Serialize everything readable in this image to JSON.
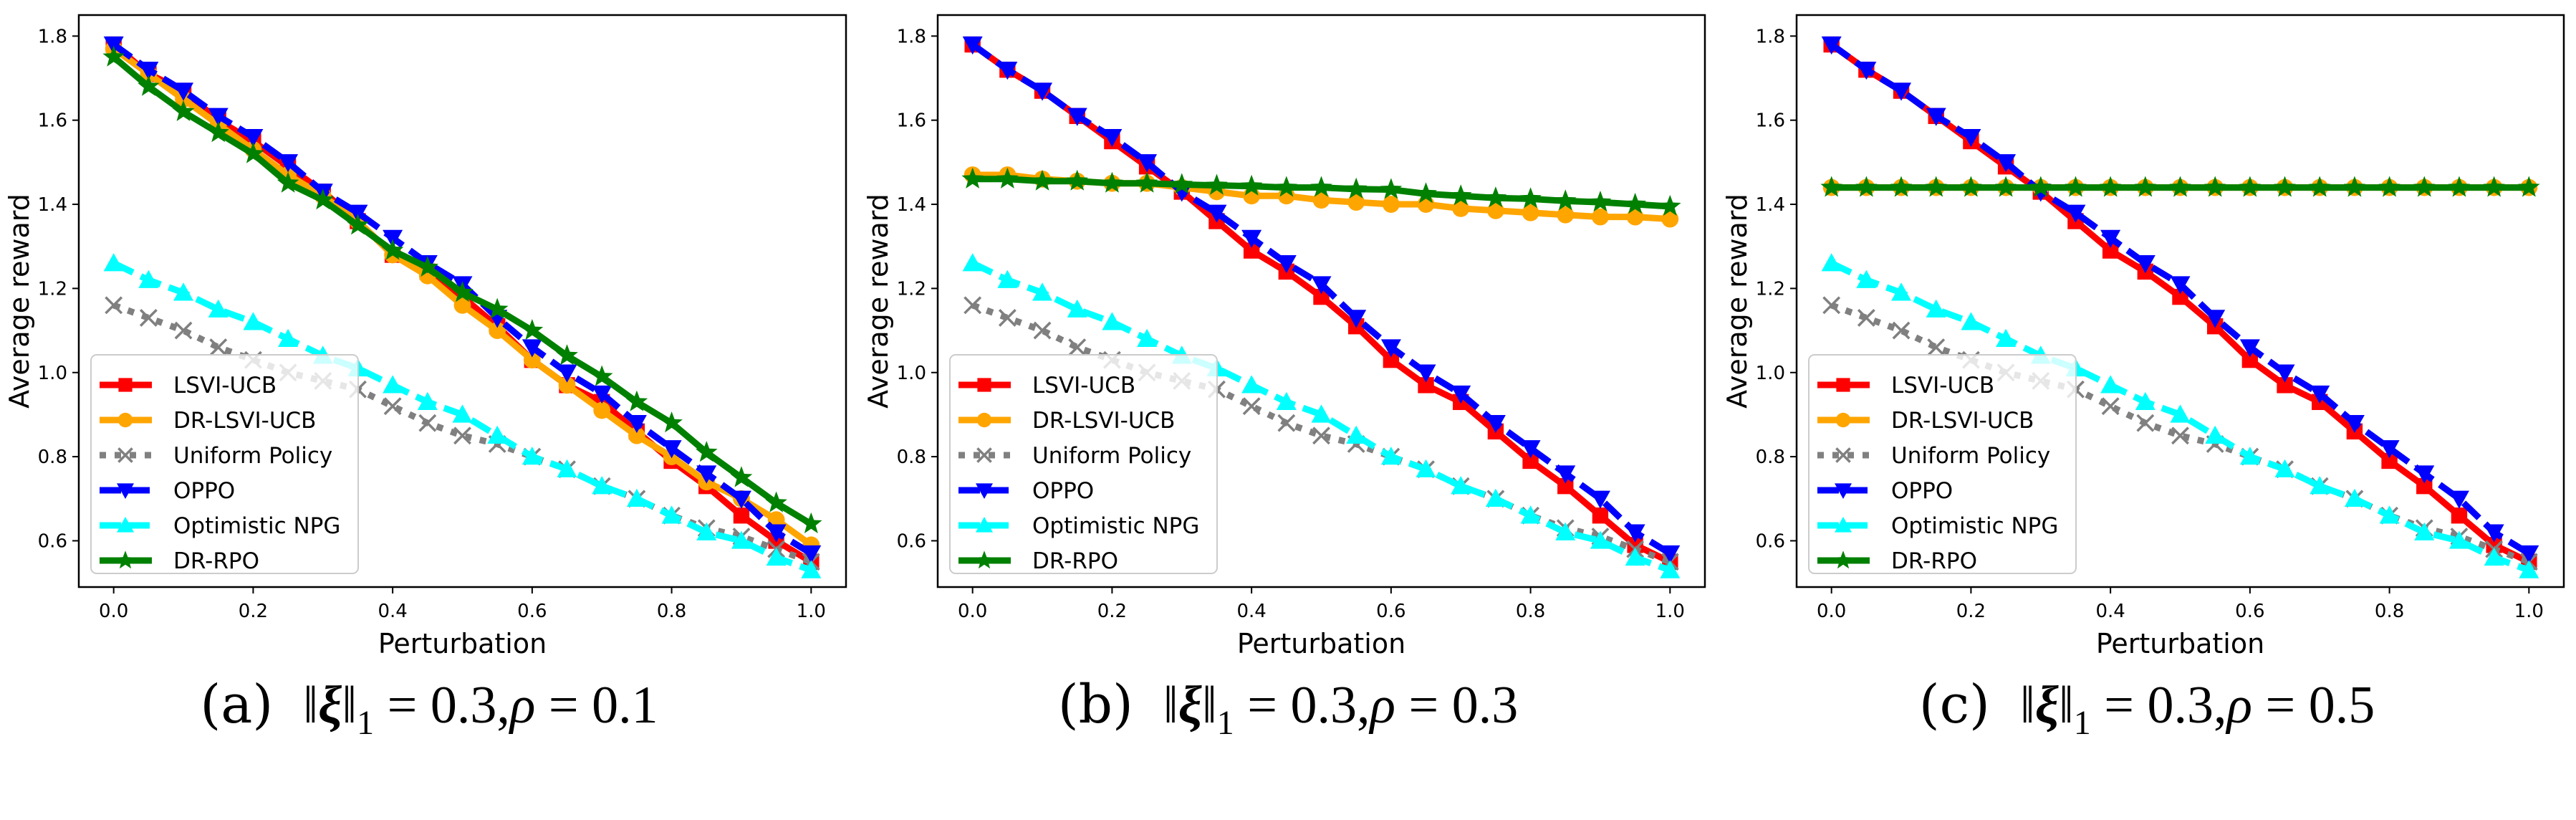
{
  "chart_data": [
    {
      "type": "line",
      "panel": "a",
      "caption": {
        "prefix": "(a)",
        "xi_norm_value": "0.3",
        "rho_value": "0.1"
      },
      "title": "",
      "xlabel": "Perturbation",
      "ylabel": "Average reward",
      "xlim": [
        -0.05,
        1.05
      ],
      "ylim": [
        0.49,
        1.85
      ],
      "xticks": [
        0.0,
        0.2,
        0.4,
        0.6,
        0.8,
        1.0
      ],
      "xtick_labels": [
        "0.0",
        "0.2",
        "0.4",
        "0.6",
        "0.8",
        "1.0"
      ],
      "yticks": [
        0.6,
        0.8,
        1.0,
        1.2,
        1.4,
        1.6,
        1.8
      ],
      "ytick_labels": [
        "0.6",
        "0.8",
        "1.0",
        "1.2",
        "1.4",
        "1.6",
        "1.8"
      ],
      "grid": false,
      "legend_position": "lower-left",
      "x": [
        0.0,
        0.05,
        0.1,
        0.15,
        0.2,
        0.25,
        0.3,
        0.35,
        0.4,
        0.45,
        0.5,
        0.55,
        0.6,
        0.65,
        0.7,
        0.75,
        0.8,
        0.85,
        0.9,
        0.95,
        1.0
      ],
      "series": [
        {
          "name": "LSVI-UCB",
          "color": "#ff0000",
          "linestyle": "solid",
          "marker": "square",
          "values": [
            1.78,
            1.71,
            1.67,
            1.6,
            1.55,
            1.49,
            1.43,
            1.36,
            1.28,
            1.24,
            1.18,
            1.11,
            1.03,
            0.97,
            0.93,
            0.86,
            0.79,
            0.73,
            0.66,
            0.6,
            0.55
          ]
        },
        {
          "name": "DR-LSVI-UCB",
          "color": "#ffa500",
          "linestyle": "solid",
          "marker": "circle",
          "values": [
            1.77,
            1.71,
            1.65,
            1.59,
            1.53,
            1.47,
            1.42,
            1.36,
            1.28,
            1.23,
            1.16,
            1.1,
            1.03,
            0.97,
            0.91,
            0.85,
            0.8,
            0.74,
            0.7,
            0.65,
            0.59
          ]
        },
        {
          "name": "Uniform Policy",
          "color": "#808080",
          "linestyle": "dotted",
          "marker": "x",
          "values": [
            1.16,
            1.13,
            1.1,
            1.06,
            1.03,
            1.0,
            0.98,
            0.96,
            0.92,
            0.88,
            0.85,
            0.83,
            0.8,
            0.77,
            0.73,
            0.7,
            0.66,
            0.63,
            0.61,
            0.58,
            0.55
          ]
        },
        {
          "name": "OPPO",
          "color": "#0000ff",
          "linestyle": "dashed",
          "marker": "triangle-down",
          "values": [
            1.78,
            1.72,
            1.67,
            1.61,
            1.56,
            1.5,
            1.43,
            1.38,
            1.32,
            1.26,
            1.21,
            1.13,
            1.06,
            1.0,
            0.95,
            0.88,
            0.82,
            0.76,
            0.7,
            0.62,
            0.57
          ]
        },
        {
          "name": "Optimistic NPG",
          "color": "#00ffff",
          "linestyle": "dashed",
          "marker": "triangle-up",
          "values": [
            1.26,
            1.22,
            1.19,
            1.15,
            1.12,
            1.08,
            1.04,
            1.01,
            0.97,
            0.93,
            0.9,
            0.85,
            0.8,
            0.77,
            0.73,
            0.7,
            0.66,
            0.62,
            0.6,
            0.56,
            0.53
          ]
        },
        {
          "name": "DR-RPO",
          "color": "#008000",
          "linestyle": "solid",
          "marker": "star",
          "values": [
            1.75,
            1.68,
            1.62,
            1.57,
            1.52,
            1.45,
            1.41,
            1.35,
            1.29,
            1.25,
            1.19,
            1.15,
            1.1,
            1.04,
            0.99,
            0.93,
            0.88,
            0.81,
            0.75,
            0.69,
            0.64
          ]
        }
      ]
    },
    {
      "type": "line",
      "panel": "b",
      "caption": {
        "prefix": "(b)",
        "xi_norm_value": "0.3",
        "rho_value": "0.3"
      },
      "title": "",
      "xlabel": "Perturbation",
      "ylabel": "Average reward",
      "xlim": [
        -0.05,
        1.05
      ],
      "ylim": [
        0.49,
        1.85
      ],
      "xticks": [
        0.0,
        0.2,
        0.4,
        0.6,
        0.8,
        1.0
      ],
      "xtick_labels": [
        "0.0",
        "0.2",
        "0.4",
        "0.6",
        "0.8",
        "1.0"
      ],
      "yticks": [
        0.6,
        0.8,
        1.0,
        1.2,
        1.4,
        1.6,
        1.8
      ],
      "ytick_labels": [
        "0.6",
        "0.8",
        "1.0",
        "1.2",
        "1.4",
        "1.6",
        "1.8"
      ],
      "grid": false,
      "legend_position": "lower-left",
      "x": [
        0.0,
        0.05,
        0.1,
        0.15,
        0.2,
        0.25,
        0.3,
        0.35,
        0.4,
        0.45,
        0.5,
        0.55,
        0.6,
        0.65,
        0.7,
        0.75,
        0.8,
        0.85,
        0.9,
        0.95,
        1.0
      ],
      "series": [
        {
          "name": "LSVI-UCB",
          "color": "#ff0000",
          "linestyle": "solid",
          "marker": "square",
          "values": [
            1.78,
            1.72,
            1.67,
            1.61,
            1.55,
            1.49,
            1.43,
            1.36,
            1.29,
            1.24,
            1.18,
            1.11,
            1.03,
            0.97,
            0.93,
            0.86,
            0.79,
            0.73,
            0.66,
            0.59,
            0.55
          ]
        },
        {
          "name": "DR-LSVI-UCB",
          "color": "#ffa500",
          "linestyle": "solid",
          "marker": "circle",
          "values": [
            1.47,
            1.47,
            1.46,
            1.455,
            1.45,
            1.45,
            1.44,
            1.43,
            1.42,
            1.42,
            1.41,
            1.405,
            1.4,
            1.4,
            1.39,
            1.385,
            1.38,
            1.375,
            1.37,
            1.37,
            1.365
          ]
        },
        {
          "name": "Uniform Policy",
          "color": "#808080",
          "linestyle": "dotted",
          "marker": "x",
          "values": [
            1.16,
            1.13,
            1.1,
            1.06,
            1.03,
            1.0,
            0.98,
            0.96,
            0.92,
            0.88,
            0.85,
            0.83,
            0.8,
            0.77,
            0.73,
            0.7,
            0.66,
            0.63,
            0.61,
            0.58,
            0.55
          ]
        },
        {
          "name": "OPPO",
          "color": "#0000ff",
          "linestyle": "dashed",
          "marker": "triangle-down",
          "values": [
            1.78,
            1.72,
            1.67,
            1.61,
            1.56,
            1.5,
            1.43,
            1.38,
            1.32,
            1.26,
            1.21,
            1.13,
            1.06,
            1.0,
            0.95,
            0.88,
            0.82,
            0.76,
            0.7,
            0.62,
            0.57
          ]
        },
        {
          "name": "Optimistic NPG",
          "color": "#00ffff",
          "linestyle": "dashed",
          "marker": "triangle-up",
          "values": [
            1.26,
            1.22,
            1.19,
            1.15,
            1.12,
            1.08,
            1.04,
            1.01,
            0.97,
            0.93,
            0.9,
            0.85,
            0.8,
            0.77,
            0.73,
            0.7,
            0.66,
            0.62,
            0.6,
            0.56,
            0.53
          ]
        },
        {
          "name": "DR-RPO",
          "color": "#008000",
          "linestyle": "solid",
          "marker": "star",
          "values": [
            1.46,
            1.46,
            1.455,
            1.455,
            1.45,
            1.45,
            1.447,
            1.445,
            1.443,
            1.44,
            1.44,
            1.436,
            1.435,
            1.425,
            1.42,
            1.415,
            1.413,
            1.408,
            1.405,
            1.4,
            1.395
          ]
        }
      ]
    },
    {
      "type": "line",
      "panel": "c",
      "caption": {
        "prefix": "(c)",
        "xi_norm_value": "0.3",
        "rho_value": "0.5"
      },
      "title": "",
      "xlabel": "Perturbation",
      "ylabel": "Average reward",
      "xlim": [
        -0.05,
        1.05
      ],
      "ylim": [
        0.49,
        1.85
      ],
      "xticks": [
        0.0,
        0.2,
        0.4,
        0.6,
        0.8,
        1.0
      ],
      "xtick_labels": [
        "0.0",
        "0.2",
        "0.4",
        "0.6",
        "0.8",
        "1.0"
      ],
      "yticks": [
        0.6,
        0.8,
        1.0,
        1.2,
        1.4,
        1.6,
        1.8
      ],
      "ytick_labels": [
        "0.6",
        "0.8",
        "1.0",
        "1.2",
        "1.4",
        "1.6",
        "1.8"
      ],
      "grid": false,
      "legend_position": "lower-left",
      "x": [
        0.0,
        0.05,
        0.1,
        0.15,
        0.2,
        0.25,
        0.3,
        0.35,
        0.4,
        0.45,
        0.5,
        0.55,
        0.6,
        0.65,
        0.7,
        0.75,
        0.8,
        0.85,
        0.9,
        0.95,
        1.0
      ],
      "series": [
        {
          "name": "LSVI-UCB",
          "color": "#ff0000",
          "linestyle": "solid",
          "marker": "square",
          "values": [
            1.78,
            1.72,
            1.67,
            1.61,
            1.55,
            1.49,
            1.43,
            1.36,
            1.29,
            1.24,
            1.18,
            1.11,
            1.03,
            0.97,
            0.93,
            0.86,
            0.79,
            0.73,
            0.66,
            0.59,
            0.55
          ]
        },
        {
          "name": "DR-LSVI-UCB",
          "color": "#ffa500",
          "linestyle": "solid",
          "marker": "circle",
          "values": [
            1.44,
            1.44,
            1.44,
            1.44,
            1.44,
            1.44,
            1.44,
            1.44,
            1.44,
            1.44,
            1.44,
            1.44,
            1.44,
            1.44,
            1.44,
            1.44,
            1.44,
            1.44,
            1.44,
            1.44,
            1.44
          ]
        },
        {
          "name": "Uniform Policy",
          "color": "#808080",
          "linestyle": "dotted",
          "marker": "x",
          "values": [
            1.16,
            1.13,
            1.1,
            1.06,
            1.03,
            1.0,
            0.98,
            0.96,
            0.92,
            0.88,
            0.85,
            0.83,
            0.8,
            0.77,
            0.73,
            0.7,
            0.66,
            0.63,
            0.61,
            0.58,
            0.55
          ]
        },
        {
          "name": "OPPO",
          "color": "#0000ff",
          "linestyle": "dashed",
          "marker": "triangle-down",
          "values": [
            1.78,
            1.72,
            1.67,
            1.61,
            1.56,
            1.5,
            1.43,
            1.38,
            1.32,
            1.26,
            1.21,
            1.13,
            1.06,
            1.0,
            0.95,
            0.88,
            0.82,
            0.76,
            0.7,
            0.62,
            0.57
          ]
        },
        {
          "name": "Optimistic NPG",
          "color": "#00ffff",
          "linestyle": "dashed",
          "marker": "triangle-up",
          "values": [
            1.26,
            1.22,
            1.19,
            1.15,
            1.12,
            1.08,
            1.04,
            1.01,
            0.97,
            0.93,
            0.9,
            0.85,
            0.8,
            0.77,
            0.73,
            0.7,
            0.66,
            0.62,
            0.6,
            0.56,
            0.53
          ]
        },
        {
          "name": "DR-RPO",
          "color": "#008000",
          "linestyle": "solid",
          "marker": "star",
          "values": [
            1.44,
            1.44,
            1.44,
            1.44,
            1.44,
            1.44,
            1.44,
            1.44,
            1.44,
            1.44,
            1.44,
            1.44,
            1.44,
            1.44,
            1.44,
            1.44,
            1.44,
            1.44,
            1.44,
            1.44,
            1.44
          ]
        }
      ]
    }
  ]
}
